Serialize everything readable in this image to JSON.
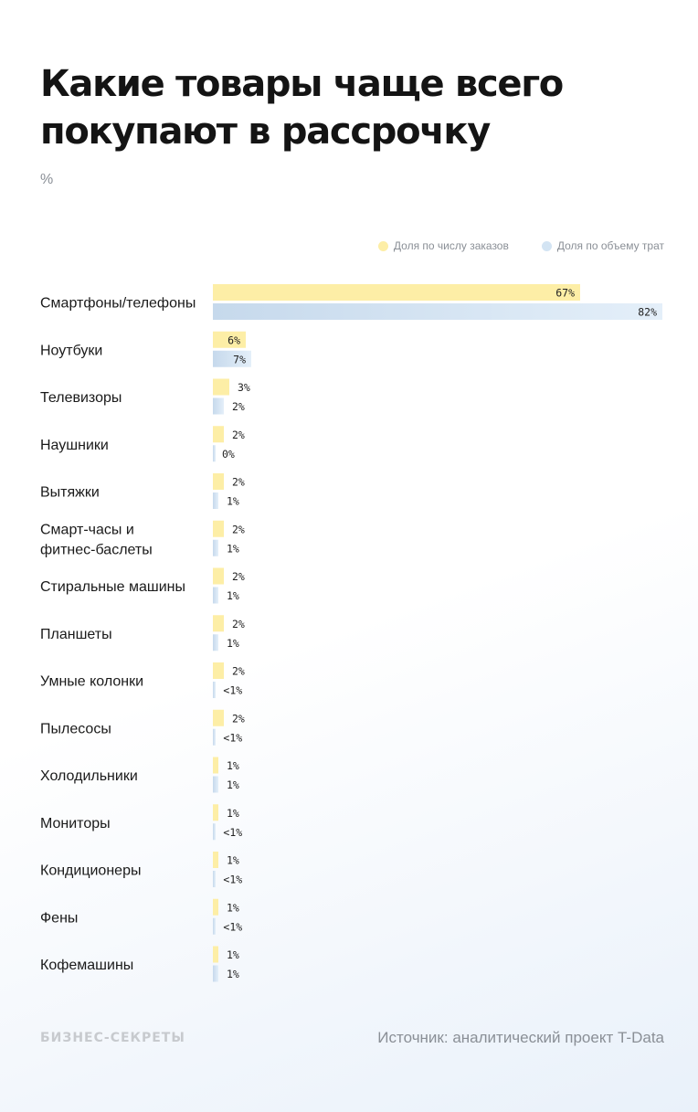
{
  "title": "Какие товары чаще всего покупают в рассрочку",
  "unit": "%",
  "footer": {
    "brand": "БИЗНЕС-СЕКРЕТЫ",
    "source": "Источник: аналитический проект T-Data"
  },
  "colors": {
    "orders": "#fdeea6",
    "spend": "#d3e4f3",
    "text": "#1a1a1a",
    "muted": "#8a8f96"
  },
  "chart_data": {
    "type": "bar",
    "orientation": "horizontal",
    "legend_position": "top-right",
    "value_max": 82,
    "categories": [
      [
        "Смартфоны/телефоны"
      ],
      [
        "Ноутбуки"
      ],
      [
        "Телевизоры"
      ],
      [
        "Наушники"
      ],
      [
        "Вытяжки"
      ],
      [
        "Смарт-часы и",
        "фитнес-баслеты"
      ],
      [
        "Стиральные машины"
      ],
      [
        "Планшеты"
      ],
      [
        "Умные колонки"
      ],
      [
        "Пылесосы"
      ],
      [
        "Холодильники"
      ],
      [
        "Мониторы"
      ],
      [
        "Кондиционеры"
      ],
      [
        "Фены"
      ],
      [
        "Кофемашины"
      ]
    ],
    "series": [
      {
        "name": "Доля по числу заказов",
        "values": [
          67,
          6,
          3,
          2,
          2,
          2,
          2,
          2,
          2,
          2,
          1,
          1,
          1,
          1,
          1
        ],
        "labels": [
          "67%",
          "6%",
          "3%",
          "2%",
          "2%",
          "2%",
          "2%",
          "2%",
          "2%",
          "2%",
          "1%",
          "1%",
          "1%",
          "1%",
          "1%"
        ]
      },
      {
        "name": "Доля по объему трат",
        "values": [
          82,
          7,
          2,
          0,
          1,
          1,
          1,
          1,
          0.4,
          0.4,
          1,
          0.4,
          0.4,
          0.4,
          1
        ],
        "labels": [
          "82%",
          "7%",
          "2%",
          "0%",
          "1%",
          "1%",
          "1%",
          "1%",
          "<1%",
          "<1%",
          "1%",
          "<1%",
          "<1%",
          "<1%",
          "1%"
        ]
      }
    ]
  }
}
